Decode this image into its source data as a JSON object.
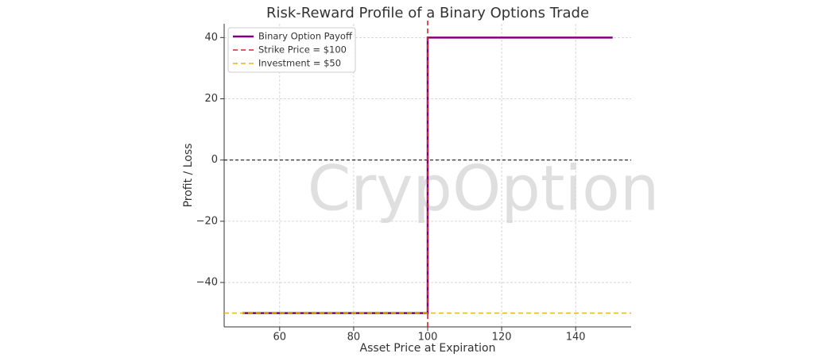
{
  "chart_data": {
    "type": "line",
    "title": "Risk-Reward Profile of a Binary Options Trade",
    "x_label": "Asset Price at Expiration",
    "y_label": "Profit / Loss",
    "watermark": "CrypOption",
    "xlim": [
      45,
      155
    ],
    "ylim": [
      -54.5,
      44.5
    ],
    "xticks": [
      60,
      80,
      100,
      120,
      140
    ],
    "yticks": [
      {
        "value": -40,
        "label": "−40"
      },
      {
        "value": -20,
        "label": "−20"
      },
      0,
      20,
      40
    ],
    "grid": true,
    "legend": "upper left",
    "reference_lines": [
      {
        "axis": "y",
        "value": 0,
        "color": "#000000"
      }
    ],
    "series": [
      {
        "name": "Binary Option Payoff",
        "color": "#800080",
        "style": "line",
        "x": [
          50,
          100,
          100,
          150
        ],
        "values": [
          -50,
          -50,
          40,
          40
        ]
      },
      {
        "name": "Strike Price = $100",
        "color": "#d62728",
        "style": "vline",
        "x": 100
      },
      {
        "name": "Investment = $50",
        "color": "#e6b422",
        "style": "hline",
        "value": -50
      }
    ]
  }
}
